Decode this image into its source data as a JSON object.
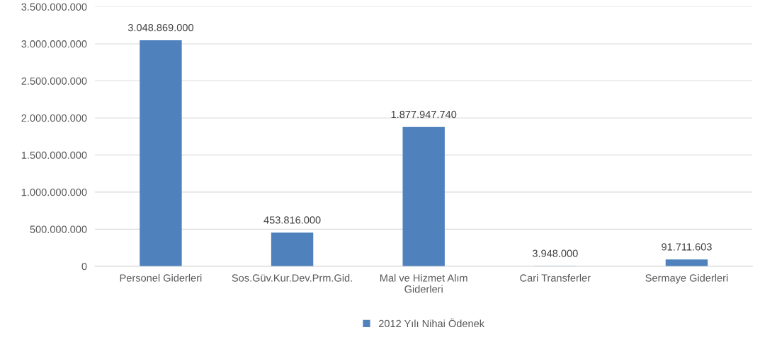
{
  "chart_data": {
    "type": "bar",
    "categories": [
      "Personel Giderleri",
      "Sos.Güv.Kur.Dev.Prm.Gid.",
      "Mal ve Hizmet Alım Giderleri",
      "Cari Transferler",
      "Sermaye Giderleri"
    ],
    "series": [
      {
        "name": "2012 Yılı Nihai Ödenek",
        "color": "#4f81bd",
        "values": [
          3048869000,
          453816000,
          1877947740,
          3948000,
          91711603
        ],
        "value_labels": [
          "3.048.869.000",
          "453.816.000",
          "1.877.947.740",
          "3.948.000",
          "91.711.603"
        ]
      }
    ],
    "ylim": [
      0,
      3500000000
    ],
    "yticks": [
      {
        "value": 0,
        "label": "0"
      },
      {
        "value": 500000000,
        "label": "500.000.000"
      },
      {
        "value": 1000000000,
        "label": "1.000.000.000"
      },
      {
        "value": 1500000000,
        "label": "1.500.000.000"
      },
      {
        "value": 2000000000,
        "label": "2.000.000.000"
      },
      {
        "value": 2500000000,
        "label": "2.500.000.000"
      },
      {
        "value": 3000000000,
        "label": "3.000.000.000"
      },
      {
        "value": 3500000000,
        "label": "3.500.000.000"
      }
    ],
    "grid": "y",
    "legend": "bottom"
  }
}
